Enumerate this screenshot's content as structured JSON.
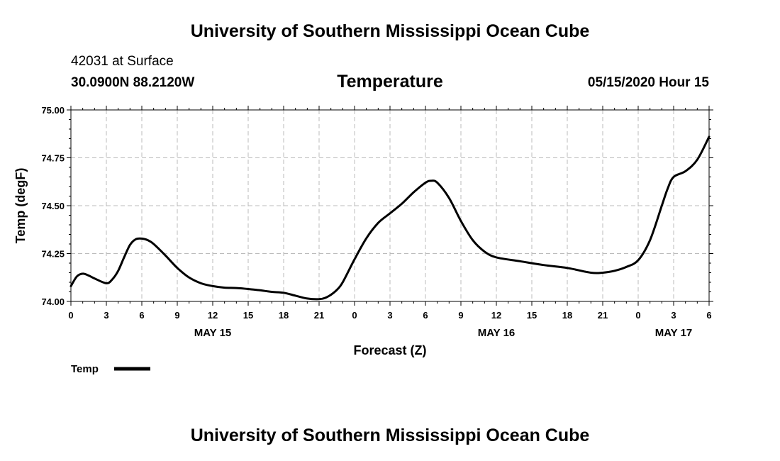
{
  "header": {
    "title": "University of Southern Mississippi Ocean Cube",
    "station": "42031 at Surface",
    "coords": "30.0900N 88.2120W",
    "datetime": "05/15/2020 Hour 15"
  },
  "footer": {
    "title": "University of Southern Mississippi Ocean Cube"
  },
  "chart_data": {
    "type": "line",
    "title": "Temperature",
    "xlabel": "Forecast (Z)",
    "ylabel": "Temp (degF)",
    "ylim": [
      74.0,
      75.0
    ],
    "xlim": [
      0,
      54
    ],
    "y_ticks": [
      "74.00",
      "74.25",
      "74.50",
      "74.75",
      "75.00"
    ],
    "x_ticks": [
      "0",
      "3",
      "6",
      "9",
      "12",
      "15",
      "18",
      "21",
      "0",
      "3",
      "6",
      "9",
      "12",
      "15",
      "18",
      "21",
      "0",
      "3",
      "6"
    ],
    "day_labels": [
      {
        "label": "MAY 15",
        "x": 12
      },
      {
        "label": "MAY 16",
        "x": 36
      },
      {
        "label": "MAY 17",
        "x": 51
      }
    ],
    "grid": true,
    "legend": {
      "position": "bottom-left",
      "entries": [
        "Temp"
      ]
    },
    "series": [
      {
        "name": "Temp",
        "color": "#000000",
        "x": [
          0,
          0.5,
          1,
          1.5,
          2,
          3,
          3.5,
          4,
          4.5,
          5,
          5.5,
          6,
          6.5,
          7,
          8,
          9,
          10,
          11,
          12,
          13,
          14,
          15,
          16,
          17,
          18,
          19,
          20,
          21,
          21.5,
          22,
          22.5,
          23,
          24,
          25,
          26,
          27,
          28,
          29,
          30,
          30.5,
          31,
          32,
          33,
          34,
          35,
          36,
          38,
          40,
          42,
          44,
          45,
          46,
          47,
          48,
          49,
          50,
          50.5,
          51,
          52,
          53,
          54
        ],
        "y": [
          74.08,
          74.13,
          74.145,
          74.135,
          74.12,
          74.095,
          74.115,
          74.16,
          74.23,
          74.295,
          74.325,
          74.328,
          74.32,
          74.3,
          74.24,
          74.175,
          74.125,
          74.095,
          74.08,
          74.072,
          74.07,
          74.065,
          74.058,
          74.05,
          74.045,
          74.03,
          74.015,
          74.012,
          74.018,
          74.035,
          74.06,
          74.1,
          74.22,
          74.33,
          74.41,
          74.46,
          74.51,
          74.57,
          74.62,
          74.63,
          74.62,
          74.54,
          74.42,
          74.32,
          74.26,
          74.23,
          74.21,
          74.19,
          74.175,
          74.15,
          74.15,
          74.16,
          74.18,
          74.215,
          74.32,
          74.5,
          74.59,
          74.65,
          74.68,
          74.74,
          74.86
        ]
      }
    ]
  }
}
